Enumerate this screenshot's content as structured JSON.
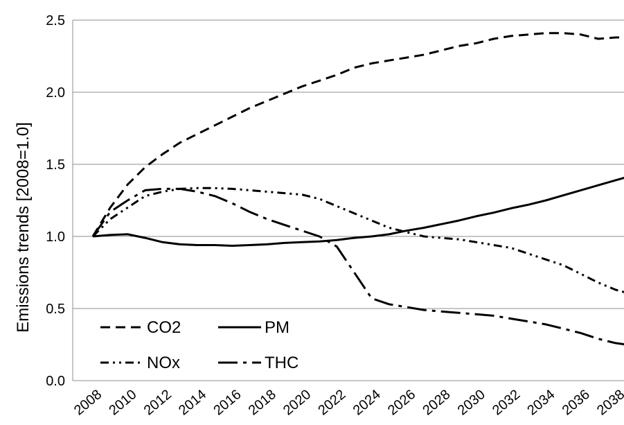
{
  "chart_data": {
    "type": "line",
    "title": "",
    "xlabel": "",
    "ylabel": "Emissions trends [2008=1.0]",
    "x_ticks": [
      "2008",
      "2010",
      "2012",
      "2014",
      "2016",
      "2018",
      "2020",
      "2022",
      "2024",
      "2026",
      "2028",
      "2030",
      "2032",
      "2034",
      "2036",
      "2038"
    ],
    "xlim": [
      2008,
      2038.6
    ],
    "ylim": [
      0,
      2.5
    ],
    "y_ticks": [
      "0.0",
      "0.5",
      "1.0",
      "1.5",
      "2.0",
      "2.5"
    ],
    "grid": "horizontal",
    "legend_position": "bottom-left",
    "x": [
      2008,
      2009,
      2010,
      2011,
      2012,
      2013,
      2014,
      2015,
      2016,
      2017,
      2018,
      2019,
      2020,
      2021,
      2022,
      2023,
      2024,
      2025,
      2026,
      2027,
      2028,
      2029,
      2030,
      2031,
      2032,
      2033,
      2034,
      2035,
      2036,
      2037,
      2038,
      2038.6
    ],
    "series": [
      {
        "name": "CO2",
        "style": "dashed",
        "values": [
          1.0,
          1.2,
          1.36,
          1.48,
          1.57,
          1.65,
          1.71,
          1.77,
          1.83,
          1.89,
          1.94,
          1.99,
          2.04,
          2.08,
          2.12,
          2.17,
          2.2,
          2.22,
          2.24,
          2.26,
          2.29,
          2.32,
          2.34,
          2.37,
          2.39,
          2.4,
          2.41,
          2.41,
          2.4,
          2.37,
          2.38,
          2.38
        ]
      },
      {
        "name": "PM",
        "style": "solid",
        "values": [
          1.0,
          1.01,
          1.015,
          0.99,
          0.96,
          0.945,
          0.94,
          0.94,
          0.935,
          0.94,
          0.945,
          0.955,
          0.96,
          0.965,
          0.975,
          0.99,
          1.0,
          1.015,
          1.04,
          1.06,
          1.085,
          1.11,
          1.14,
          1.165,
          1.195,
          1.22,
          1.25,
          1.285,
          1.32,
          1.355,
          1.39,
          1.41
        ]
      },
      {
        "name": "NOx",
        "style": "dash-dot-dot",
        "values": [
          1.0,
          1.12,
          1.2,
          1.28,
          1.31,
          1.33,
          1.335,
          1.335,
          1.33,
          1.32,
          1.31,
          1.3,
          1.29,
          1.26,
          1.21,
          1.16,
          1.11,
          1.06,
          1.03,
          1.0,
          0.99,
          0.98,
          0.96,
          0.94,
          0.92,
          0.88,
          0.84,
          0.8,
          0.74,
          0.68,
          0.63,
          0.61
        ]
      },
      {
        "name": "THC",
        "style": "long-dash-dot",
        "values": [
          1.0,
          1.17,
          1.25,
          1.32,
          1.33,
          1.33,
          1.31,
          1.28,
          1.23,
          1.17,
          1.12,
          1.08,
          1.04,
          1.0,
          0.93,
          0.75,
          0.57,
          0.53,
          0.51,
          0.49,
          0.48,
          0.47,
          0.46,
          0.45,
          0.43,
          0.41,
          0.39,
          0.36,
          0.33,
          0.29,
          0.26,
          0.25
        ]
      }
    ]
  }
}
